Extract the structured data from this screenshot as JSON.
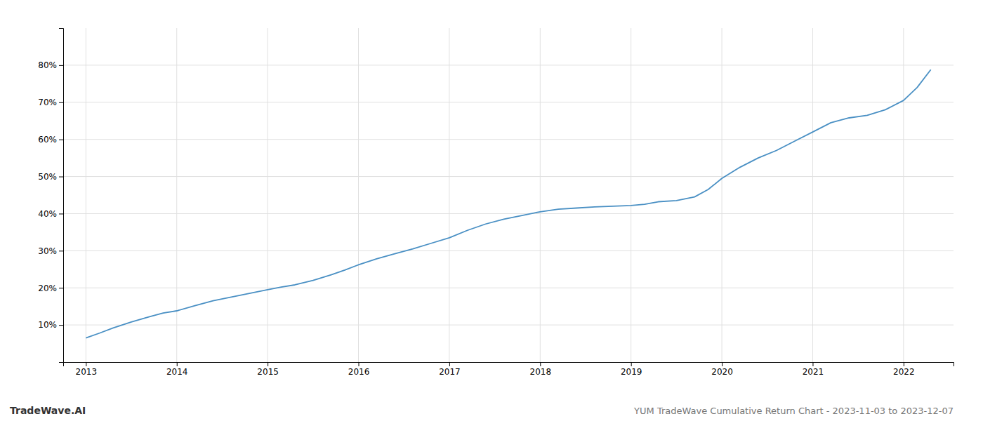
{
  "chart_data": {
    "type": "line",
    "title": "YUM TradeWave Cumulative Return Chart - 2023-11-03 to 2023-12-07",
    "annotations": [
      "TradeWave.AI"
    ],
    "color": "#4a90c4",
    "grid": true,
    "x": [
      2013.0,
      2013.15,
      2013.3,
      2013.5,
      2013.7,
      2013.85,
      2014.0,
      2014.2,
      2014.4,
      2014.6,
      2014.8,
      2015.0,
      2015.15,
      2015.3,
      2015.5,
      2015.7,
      2015.85,
      2016.0,
      2016.2,
      2016.4,
      2016.6,
      2016.8,
      2017.0,
      2017.2,
      2017.4,
      2017.6,
      2017.8,
      2018.0,
      2018.2,
      2018.4,
      2018.6,
      2018.8,
      2019.0,
      2019.15,
      2019.3,
      2019.5,
      2019.7,
      2019.85,
      2020.0,
      2020.2,
      2020.4,
      2020.6,
      2020.8,
      2021.0,
      2021.2,
      2021.4,
      2021.6,
      2021.8,
      2022.0,
      2022.15,
      2022.3
    ],
    "values": [
      6.5,
      7.8,
      9.2,
      10.8,
      12.2,
      13.2,
      13.8,
      15.2,
      16.5,
      17.5,
      18.5,
      19.5,
      20.2,
      20.8,
      22.0,
      23.5,
      24.8,
      26.2,
      27.8,
      29.2,
      30.5,
      32.0,
      33.5,
      35.5,
      37.2,
      38.5,
      39.5,
      40.5,
      41.2,
      41.5,
      41.8,
      42.0,
      42.2,
      42.5,
      43.2,
      43.5,
      44.5,
      46.5,
      49.5,
      52.5,
      55.0,
      57.0,
      59.5,
      62.0,
      64.5,
      65.8,
      66.5,
      68.0,
      70.5,
      74.0,
      78.8
    ],
    "xlim": [
      2012.75,
      2022.55
    ],
    "xticks": [
      2013,
      2014,
      2015,
      2016,
      2017,
      2018,
      2019,
      2020,
      2021,
      2022
    ],
    "ylim": [
      0,
      90
    ],
    "yticks": [
      {
        "value": 10,
        "label": "10%"
      },
      {
        "value": 20,
        "label": "20%"
      },
      {
        "value": 30,
        "label": "30%"
      },
      {
        "value": 40,
        "label": "40%"
      },
      {
        "value": 50,
        "label": "50%"
      },
      {
        "value": 60,
        "label": "60%"
      },
      {
        "value": 70,
        "label": "70%"
      },
      {
        "value": 80,
        "label": "80%"
      }
    ]
  }
}
